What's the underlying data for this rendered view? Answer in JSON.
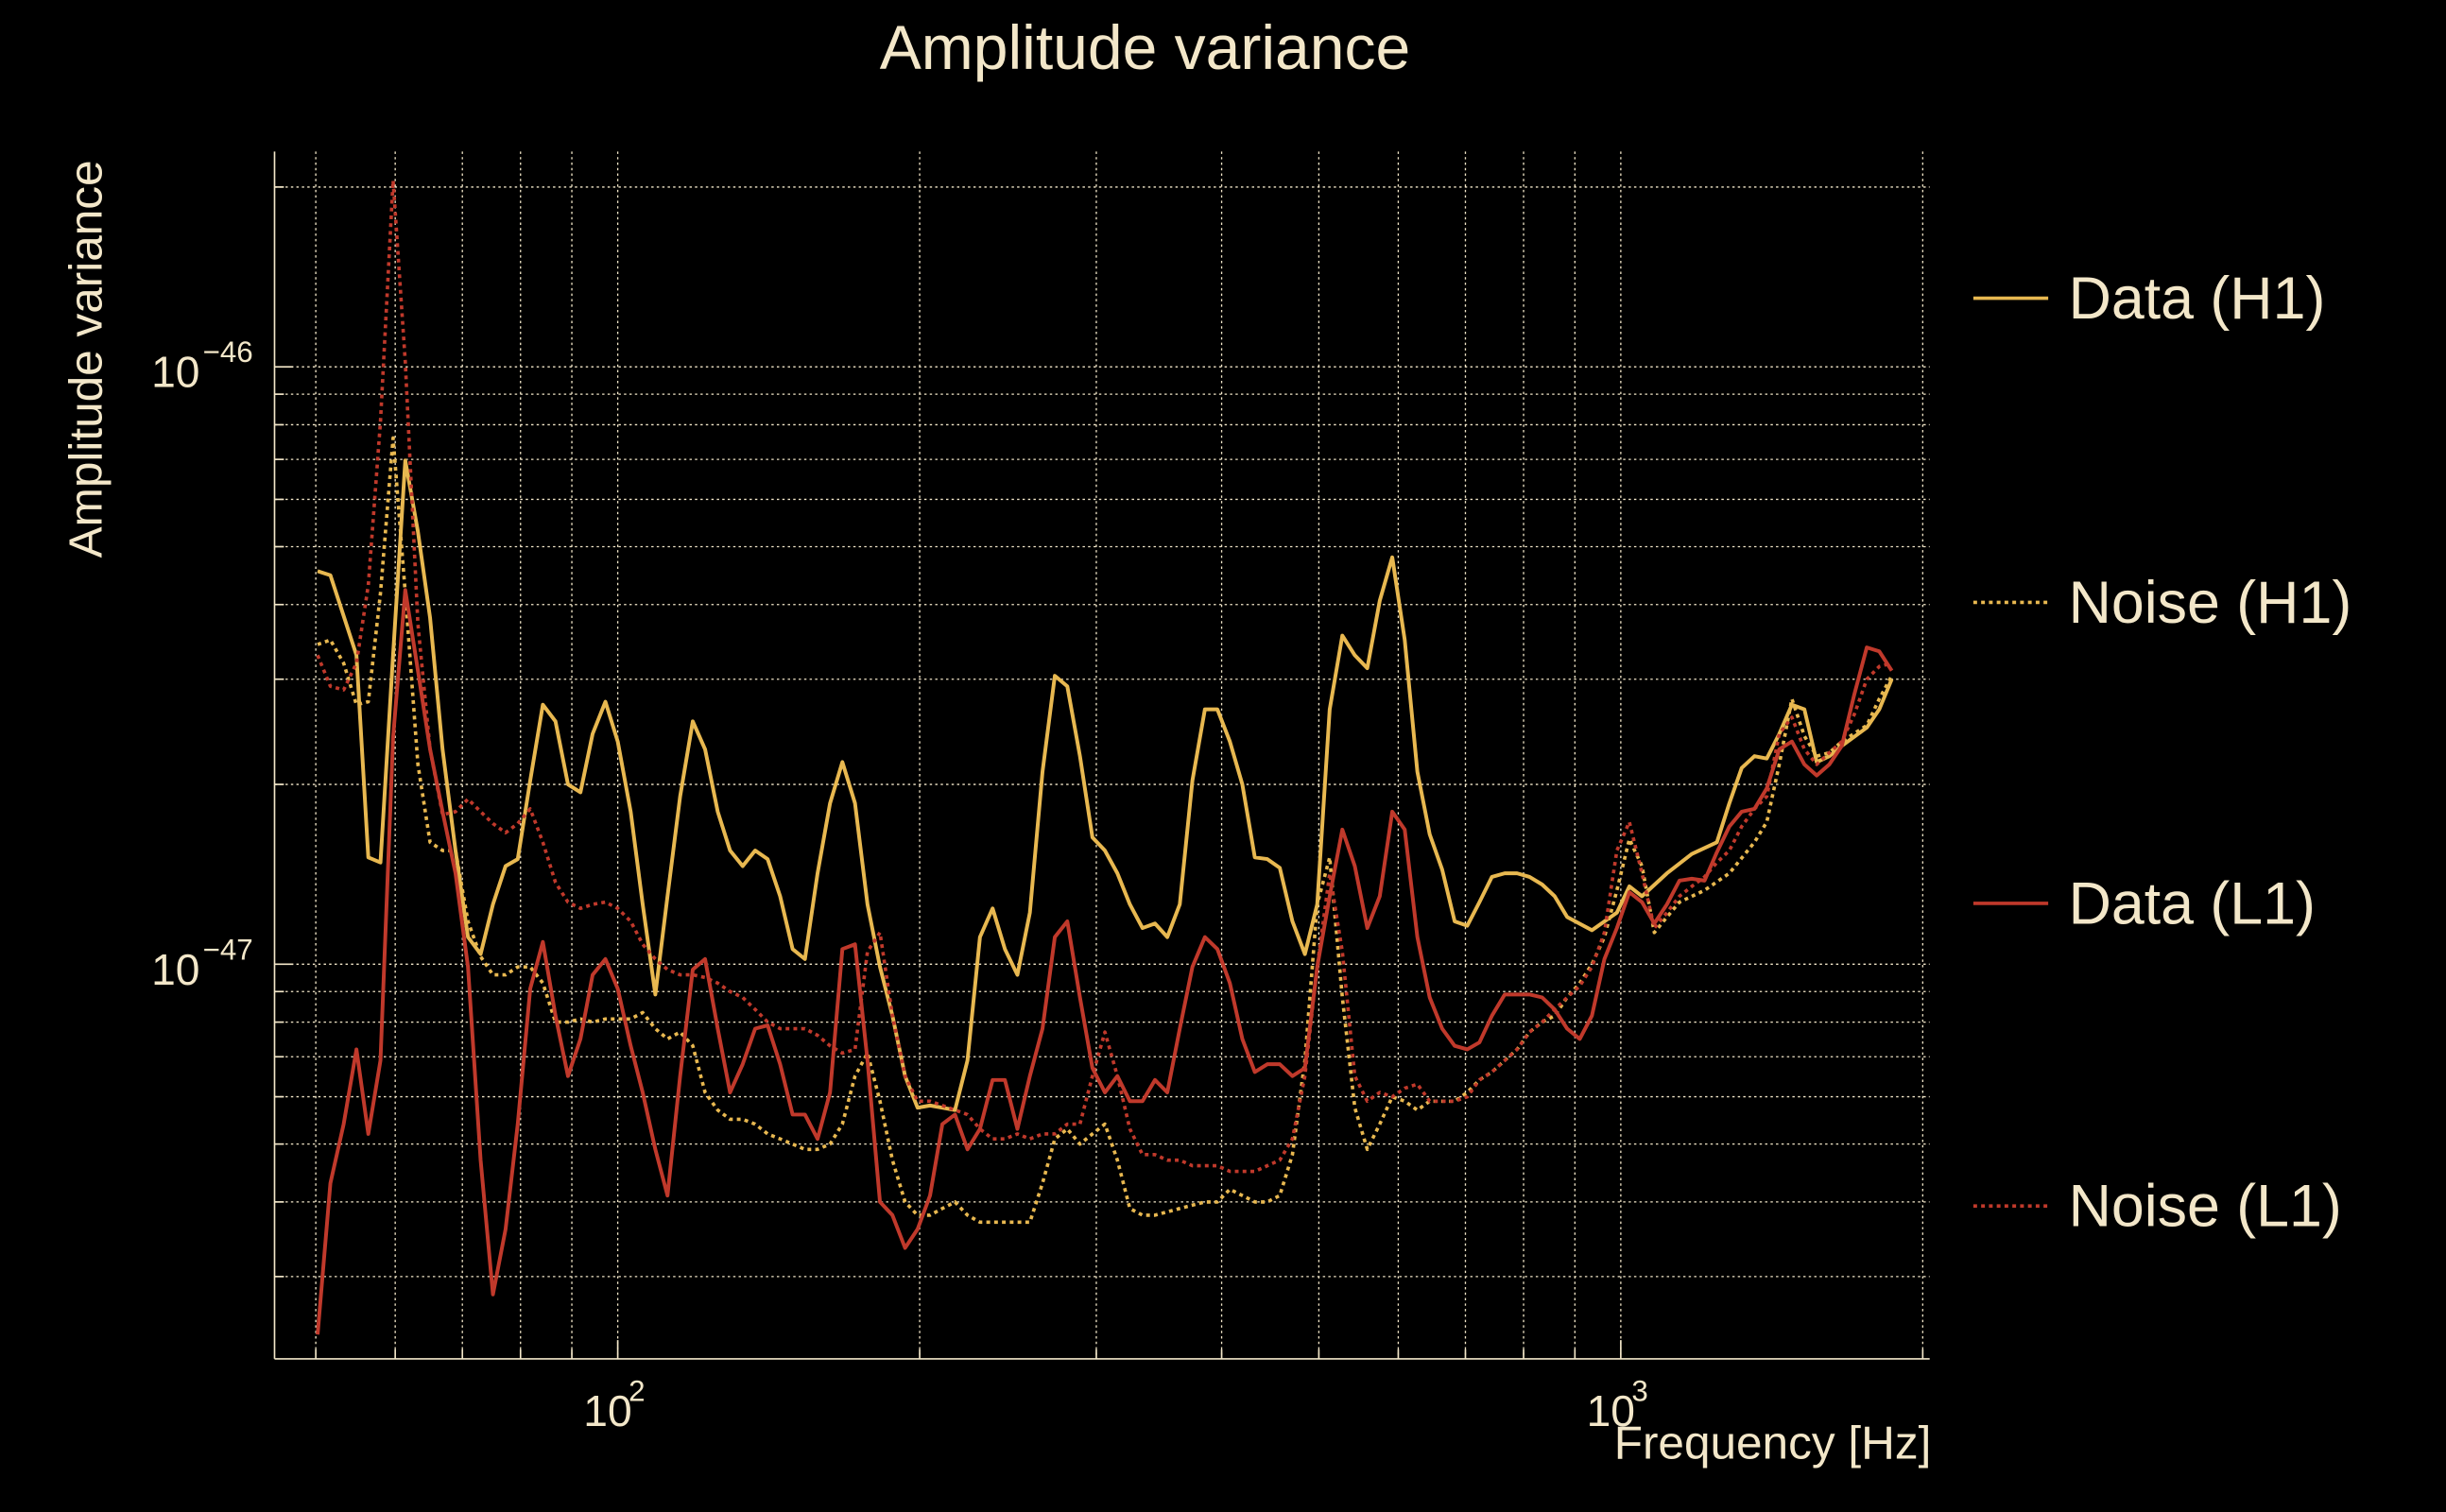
{
  "chart_data": {
    "type": "line",
    "title": "Amplitude variance",
    "xlabel": "Frequency [Hz]",
    "ylabel": "Amplitude variance",
    "xscale": "log",
    "yscale": "log",
    "xlim": [
      45.5,
      2030
    ],
    "ylim": [
      2.19e-48,
      2.29e-46
    ],
    "grid": true,
    "legend_position": "right",
    "x_ticks": [
      {
        "value": 100,
        "base": "10",
        "exp": "2"
      },
      {
        "value": 1000,
        "base": "10",
        "exp": "3"
      }
    ],
    "y_ticks": [
      {
        "value": 1e-46,
        "base": "10",
        "exp": "−46"
      },
      {
        "value": 1e-47,
        "base": "10",
        "exp": "−47"
      }
    ],
    "colors": {
      "h1": "#e8b850",
      "l1": "#c0392b",
      "text": "#f3e7c9",
      "background": "#000000"
    },
    "series": [
      {
        "name": "Data (H1)",
        "color": "#e8b850",
        "style": "solid",
        "x": [
          50.2,
          51.7,
          54.9,
          56.4,
          58.0,
          59.7,
          61.4,
          63.2,
          65.0,
          66.9,
          68.9,
          70.9,
          73.0,
          75.1,
          77.3,
          79.5,
          81.8,
          84.2,
          86.7,
          89.2,
          91.8,
          94.4,
          97.2,
          100,
          103,
          105.9,
          109,
          112.1,
          115.4,
          118.8,
          122.2,
          125.8,
          129.4,
          133.2,
          137.1,
          141.1,
          145.2,
          149.4,
          153.7,
          158.2,
          162.8,
          167.5,
          172.4,
          177.4,
          182.6,
          187.9,
          193.4,
          199.0,
          204.8,
          210.7,
          216.9,
          223.2,
          229.7,
          236.4,
          243.2,
          250.3,
          257.6,
          265.1,
          272.8,
          280.7,
          288.9,
          297.3,
          306,
          314.9,
          324,
          333.5,
          343.2,
          353.1,
          363.4,
          374,
          384.9,
          396.1,
          407.6,
          419.5,
          431.7,
          444.2,
          457.2,
          470.5,
          484.2,
          498.2,
          512.7,
          527.7,
          543,
          558.8,
          575.1,
          591.8,
          609,
          626.8,
          645,
          663.7,
          683,
          703,
          723,
          744,
          766,
          788,
          811,
          835,
          859,
          884,
          936,
          991,
          1020,
          1050,
          1112,
          1177,
          1247,
          1283,
          1320,
          1359,
          1398,
          1439,
          1481,
          1524,
          1568,
          1614,
          1661,
          1759,
          1810,
          1863
        ],
        "y": [
          4.55e-47,
          4.48e-47,
          3.29e-47,
          1.51e-47,
          1.48e-47,
          3.3e-47,
          6.97e-47,
          5.3e-47,
          3.8e-47,
          2.29e-47,
          1.55e-47,
          1.11e-47,
          1.04e-47,
          1.26e-47,
          1.46e-47,
          1.5e-47,
          2.03e-47,
          2.72e-47,
          2.55e-47,
          2e-47,
          1.94e-47,
          2.43e-47,
          2.75e-47,
          2.36e-47,
          1.8e-47,
          1.26e-47,
          8.9e-48,
          1.3e-47,
          1.91e-47,
          2.55e-47,
          2.29e-47,
          1.8e-47,
          1.55e-47,
          1.46e-47,
          1.55e-47,
          1.5e-47,
          1.3e-47,
          1.06e-47,
          1.02e-47,
          1.42e-47,
          1.86e-47,
          2.18e-47,
          1.86e-47,
          1.26e-47,
          9.9e-48,
          8.2e-48,
          6.5e-48,
          5.75e-48,
          5.8e-48,
          5.75e-48,
          5.7e-48,
          6.9e-48,
          1.11e-47,
          1.24e-47,
          1.06e-47,
          9.6e-48,
          1.22e-47,
          2.1e-47,
          3.04e-47,
          2.92e-47,
          2.23e-47,
          1.63e-47,
          1.55e-47,
          1.42e-47,
          1.26e-47,
          1.15e-47,
          1.17e-47,
          1.11e-47,
          1.26e-47,
          2.03e-47,
          2.67e-47,
          2.67e-47,
          2.36e-47,
          2e-47,
          1.51e-47,
          1.5e-47,
          1.45e-47,
          1.18e-47,
          1.04e-47,
          1.26e-47,
          2.67e-47,
          3.55e-47,
          3.29e-47,
          3.13e-47,
          4.06e-47,
          4.8e-47,
          3.49e-47,
          2.1e-47,
          1.65e-47,
          1.44e-47,
          1.18e-47,
          1.16e-47,
          1.27e-47,
          1.4e-47,
          1.42e-47,
          1.42e-47,
          1.4e-47,
          1.36e-47,
          1.3e-47,
          1.2e-47,
          1.14e-47,
          1.22e-47,
          1.35e-47,
          1.3e-47,
          1.42e-47,
          1.53e-47,
          1.6e-47,
          1.86e-47,
          2.13e-47,
          2.23e-47,
          2.21e-47,
          2.43e-47,
          2.72e-47,
          2.67e-47,
          2.18e-47,
          2.23e-47,
          2.32e-47,
          2.49e-47,
          2.67e-47,
          3e-47
        ]
      },
      {
        "name": "Noise (H1)",
        "color": "#e8b850",
        "style": "dotted",
        "x": [
          50.2,
          51.7,
          53.3,
          54.9,
          56.4,
          58.0,
          59.7,
          61.4,
          63.2,
          65.0,
          66.9,
          68.9,
          70.9,
          73.0,
          75.1,
          77.3,
          79.5,
          81.8,
          84.2,
          86.7,
          89.2,
          91.8,
          94.4,
          97.2,
          100,
          103,
          105.9,
          109,
          112.1,
          115.4,
          118.8,
          122.2,
          125.8,
          129.4,
          133.2,
          137.1,
          141.1,
          145.2,
          149.4,
          153.7,
          158.2,
          162.8,
          167.5,
          172.4,
          177.4,
          182.6,
          187.9,
          193.4,
          199.0,
          204.8,
          210.7,
          216.9,
          223.2,
          229.7,
          236.4,
          243.2,
          250.3,
          257.6,
          265.1,
          272.8,
          280.7,
          288.9,
          297.3,
          306,
          314.9,
          324,
          333.5,
          343.2,
          363.4,
          384.9,
          396.1,
          407.6,
          419.5,
          431.7,
          444.2,
          457.2,
          470.5,
          484.2,
          498.2,
          512.7,
          527.7,
          543,
          558.8,
          575.1,
          591.8,
          609,
          626.8,
          645,
          683,
          703,
          723,
          744,
          766,
          788,
          811,
          835,
          859,
          884,
          910,
          936,
          963,
          991,
          1020,
          1050,
          1080,
          1112,
          1144,
          1212,
          1283,
          1359,
          1398,
          1439,
          1481,
          1524,
          1568,
          1614,
          1661,
          1759,
          1810,
          1863
        ],
        "y": [
          3.43e-47,
          3.49e-47,
          3.19e-47,
          2.72e-47,
          2.75e-47,
          4.18e-47,
          7.6e-47,
          4.18e-47,
          2.16e-47,
          1.6e-47,
          1.55e-47,
          1.55e-47,
          1.18e-47,
          1.03e-47,
          9.6e-48,
          9.6e-48,
          9.9e-48,
          9.9e-48,
          9.3e-48,
          8e-48,
          8e-48,
          8.1e-48,
          8e-48,
          8.1e-48,
          8.1e-48,
          8.1e-48,
          8.3e-48,
          7.8e-48,
          7.5e-48,
          7.7e-48,
          7.3e-48,
          6.1e-48,
          5.7e-48,
          5.5e-48,
          5.5e-48,
          5.4e-48,
          5.2e-48,
          5.1e-48,
          5e-48,
          4.9e-48,
          4.9e-48,
          5e-48,
          5.4e-48,
          6.5e-48,
          7.1e-48,
          5.9e-48,
          4.7e-48,
          4e-48,
          3.8e-48,
          3.8e-48,
          3.9e-48,
          4e-48,
          3.8e-48,
          3.7e-48,
          3.7e-48,
          3.7e-48,
          3.7e-48,
          3.7e-48,
          4.3e-48,
          5.1e-48,
          5.3e-48,
          5e-48,
          5.2e-48,
          5.4e-48,
          4.7e-48,
          3.9e-48,
          3.8e-48,
          3.8e-48,
          3.9e-48,
          4e-48,
          4e-48,
          4.2e-48,
          4.1e-48,
          4e-48,
          4e-48,
          4.1e-48,
          4.8e-48,
          6.9e-48,
          1.26e-47,
          1.51e-47,
          8.8e-48,
          5.75e-48,
          4.9e-48,
          5.4e-48,
          6e-48,
          5.9e-48,
          5.7e-48,
          5.9e-48,
          5.9e-48,
          6.1e-48,
          6.4e-48,
          6.6e-48,
          6.9e-48,
          7.2e-48,
          7.7e-48,
          8e-48,
          8.2e-48,
          8.8e-48,
          9.3e-48,
          1e-47,
          1.11e-47,
          1.33e-47,
          1.62e-47,
          1.46e-47,
          1.13e-47,
          1.2e-47,
          1.27e-47,
          1.33e-47,
          1.42e-47,
          1.6e-47,
          1.73e-47,
          2.16e-47,
          2.78e-47,
          2.41e-47,
          2.23e-47,
          2.26e-47,
          2.36e-47,
          2.51e-47,
          2.78e-47,
          3.04e-47
        ]
      },
      {
        "name": "Data (L1)",
        "color": "#c0392b",
        "style": "solid",
        "x": [
          50.2,
          51.7,
          53.3,
          54.9,
          56.4,
          58.0,
          59.7,
          61.4,
          63.2,
          65.0,
          66.9,
          68.9,
          70.9,
          73.0,
          75.1,
          77.3,
          79.5,
          81.8,
          84.2,
          86.7,
          89.2,
          91.8,
          94.4,
          97.2,
          100,
          103,
          105.9,
          109,
          112.1,
          115.4,
          118.8,
          122.2,
          125.8,
          129.4,
          133.2,
          137.1,
          141.1,
          145.2,
          149.4,
          153.7,
          158.2,
          162.8,
          167.5,
          172.4,
          177.4,
          182.6,
          187.9,
          193.4,
          199.0,
          204.8,
          210.7,
          216.9,
          223.2,
          229.7,
          236.4,
          243.2,
          250.3,
          257.6,
          265.1,
          272.8,
          280.7,
          288.9,
          297.3,
          306,
          314.9,
          324,
          333.5,
          343.2,
          353.1,
          363.4,
          374,
          384.9,
          396.1,
          407.6,
          419.5,
          431.7,
          444.2,
          457.2,
          470.5,
          484.2,
          498.2,
          512.7,
          527.7,
          543,
          558.8,
          575.1,
          591.8,
          609,
          626.8,
          645,
          663.7,
          683,
          703,
          723,
          744,
          766,
          788,
          811,
          835,
          859,
          884,
          910,
          936,
          963,
          991,
          1020,
          1050,
          1080,
          1112,
          1144,
          1177,
          1212,
          1247,
          1283,
          1320,
          1359,
          1398,
          1439,
          1481,
          1524,
          1568,
          1614,
          1661,
          1709,
          1759,
          1810,
          1863
        ],
        "y": [
          2.4e-48,
          4.3e-48,
          5.4e-48,
          7.2e-48,
          5.2e-48,
          6.9e-48,
          2.4e-47,
          4.23e-47,
          3.1e-47,
          2.29e-47,
          1.8e-47,
          1.42e-47,
          9.9e-48,
          4.7e-48,
          2.8e-48,
          3.6e-48,
          5.4e-48,
          9.1e-48,
          1.09e-47,
          8.2e-48,
          6.5e-48,
          7.5e-48,
          9.6e-48,
          1.02e-47,
          9.1e-48,
          7.3e-48,
          6.1e-48,
          4.9e-48,
          4.1e-48,
          6.5e-48,
          9.8e-48,
          1.02e-47,
          7.8e-48,
          6.1e-48,
          6.8e-48,
          7.8e-48,
          7.9e-48,
          6.8e-48,
          5.6e-48,
          5.6e-48,
          5.1e-48,
          6.1e-48,
          1.06e-47,
          1.08e-47,
          6.9e-48,
          4e-48,
          3.8e-48,
          3.35e-48,
          3.6e-48,
          4.1e-48,
          5.4e-48,
          5.6e-48,
          4.9e-48,
          5.3e-48,
          6.4e-48,
          6.4e-48,
          5.3e-48,
          6.5e-48,
          7.8e-48,
          1.11e-47,
          1.18e-47,
          8.8e-48,
          6.7e-48,
          6.1e-48,
          6.5e-48,
          5.9e-48,
          5.9e-48,
          6.4e-48,
          6.1e-48,
          7.8e-48,
          9.9e-48,
          1.11e-47,
          1.06e-47,
          9.3e-48,
          7.5e-48,
          6.6e-48,
          6.8e-48,
          6.8e-48,
          6.5e-48,
          6.7e-48,
          9.9e-48,
          1.3e-47,
          1.68e-47,
          1.46e-47,
          1.15e-47,
          1.3e-47,
          1.8e-47,
          1.68e-47,
          1.11e-47,
          8.8e-48,
          7.8e-48,
          7.3e-48,
          7.2e-48,
          7.4e-48,
          8.2e-48,
          8.9e-48,
          8.9e-48,
          8.9e-48,
          8.8e-48,
          8.4e-48,
          7.8e-48,
          7.5e-48,
          8.2e-48,
          1.02e-47,
          1.15e-47,
          1.32e-47,
          1.27e-47,
          1.17e-47,
          1.26e-47,
          1.38e-47,
          1.39e-47,
          1.38e-47,
          1.54e-47,
          1.7e-47,
          1.8e-47,
          1.82e-47,
          1.97e-47,
          2.29e-47,
          2.36e-47,
          2.16e-47,
          2.07e-47,
          2.16e-47,
          2.32e-47,
          2.83e-47,
          3.39e-47,
          3.34e-47,
          3.1e-47
        ]
      },
      {
        "name": "Noise (L1)",
        "color": "#c0392b",
        "style": "dotted",
        "x": [
          50.2,
          51.7,
          53.3,
          54.9,
          56.4,
          58.0,
          59.7,
          61.4,
          63.2,
          65.0,
          66.9,
          68.9,
          70.9,
          73.0,
          75.1,
          77.3,
          79.5,
          81.8,
          84.2,
          86.7,
          89.2,
          91.8,
          94.4,
          97.2,
          100,
          103,
          105.9,
          109,
          112.1,
          115.4,
          118.8,
          122.2,
          125.8,
          129.4,
          133.2,
          137.1,
          141.1,
          145.2,
          149.4,
          153.7,
          158.2,
          162.8,
          167.5,
          172.4,
          177.4,
          182.6,
          187.9,
          193.4,
          199.0,
          204.8,
          210.7,
          216.9,
          223.2,
          229.7,
          236.4,
          243.2,
          250.3,
          257.6,
          265.1,
          272.8,
          280.7,
          288.9,
          297.3,
          306,
          314.9,
          324,
          333.5,
          343.2,
          353.1,
          363.4,
          374,
          384.9,
          396.1,
          407.6,
          419.5,
          431.7,
          444.2,
          457.2,
          470.5,
          484.2,
          498.2,
          512.7,
          527.7,
          543,
          558.8,
          575.1,
          591.8,
          609,
          626.8,
          645,
          683,
          703,
          723,
          744,
          766,
          788,
          811,
          835,
          859,
          884,
          910,
          936,
          963,
          991,
          1020,
          1050,
          1080,
          1112,
          1144,
          1177,
          1212,
          1247,
          1283,
          1320,
          1359,
          1398,
          1439,
          1481,
          1524,
          1568,
          1614,
          1661,
          1709,
          1759,
          1810,
          1863
        ],
        "y": [
          3.29e-47,
          2.92e-47,
          2.88e-47,
          3.19e-47,
          4.31e-47,
          8.1e-47,
          2.05e-46,
          1.02e-46,
          3.71e-47,
          2.29e-47,
          1.78e-47,
          1.8e-47,
          1.89e-47,
          1.8e-47,
          1.72e-47,
          1.66e-47,
          1.72e-47,
          1.82e-47,
          1.6e-47,
          1.37e-47,
          1.27e-47,
          1.24e-47,
          1.26e-47,
          1.27e-47,
          1.24e-47,
          1.18e-47,
          1.08e-47,
          1.02e-47,
          9.8e-48,
          9.6e-48,
          9.6e-48,
          9.5e-48,
          9.3e-48,
          9e-48,
          8.8e-48,
          8.4e-48,
          8e-48,
          7.8e-48,
          7.8e-48,
          7.8e-48,
          7.6e-48,
          7.3e-48,
          7.1e-48,
          7.2e-48,
          1.05e-47,
          1.13e-47,
          8.2e-48,
          6.5e-48,
          5.9e-48,
          5.9e-48,
          5.8e-48,
          5.7e-48,
          5.6e-48,
          5.3e-48,
          5.1e-48,
          5.1e-48,
          5.2e-48,
          5.1e-48,
          5.2e-48,
          5.2e-48,
          5.4e-48,
          5.4e-48,
          6.5e-48,
          7.7e-48,
          6.5e-48,
          5.3e-48,
          4.8e-48,
          4.8e-48,
          4.7e-48,
          4.7e-48,
          4.6e-48,
          4.6e-48,
          4.6e-48,
          4.5e-48,
          4.5e-48,
          4.5e-48,
          4.6e-48,
          4.7e-48,
          5.1e-48,
          6.5e-48,
          9.9e-48,
          1.42e-47,
          1.05e-47,
          6.5e-48,
          5.9e-48,
          6.1e-48,
          6e-48,
          6.2e-48,
          6.3e-48,
          5.9e-48,
          5.9e-48,
          6e-48,
          6.4e-48,
          6.6e-48,
          6.9e-48,
          7.2e-48,
          7.7e-48,
          8e-48,
          8.4e-48,
          8.8e-48,
          9.2e-48,
          9.9e-48,
          1.13e-47,
          1.55e-47,
          1.73e-47,
          1.42e-47,
          1.15e-47,
          1.22e-47,
          1.3e-47,
          1.35e-47,
          1.4e-47,
          1.48e-47,
          1.55e-47,
          1.7e-47,
          1.82e-47,
          1.91e-47,
          2.43e-47,
          2.59e-47,
          2.29e-47,
          2.16e-47,
          2.26e-47,
          2.36e-47,
          2.62e-47,
          3e-47,
          3.15e-47,
          3.19e-47
        ]
      }
    ]
  }
}
